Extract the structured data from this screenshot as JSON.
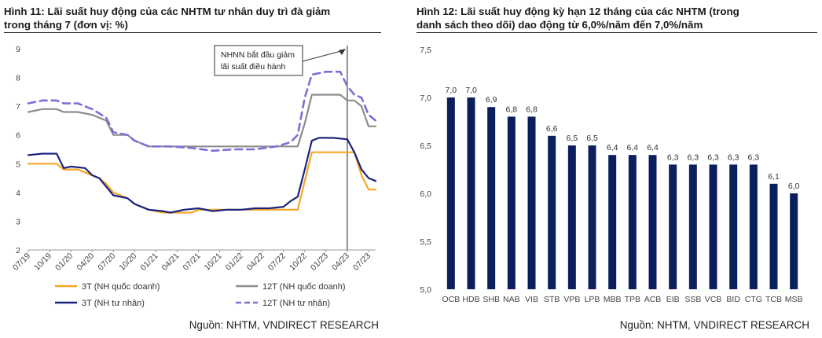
{
  "panel1": {
    "title_line1": "Hình 11: Lãi suất huy động của các NHTM tư nhân duy trì đà giảm",
    "title_line2": "trong tháng 7 (đơn vị: %)",
    "source": "Nguồn: NHTM, VNDIRECT RESEARCH"
  },
  "panel2": {
    "title_line1": "Hình 12: Lãi suất huy động kỳ hạn 12 tháng của các NHTM  (trong",
    "title_line2": "danh sách theo dõi) dao động từ 6,0%/năm đến 7,0%/năm",
    "source": "Nguồn: NHTM, VNDIRECT RESEARCH"
  },
  "colors": {
    "orange": "#F5A623",
    "gray": "#8C8C8C",
    "navy": "#1A237E",
    "purple_dash": "#7B6FD6",
    "bar": "#0B1F5C"
  },
  "chart_data": [
    {
      "type": "line",
      "x_ticks": [
        "07/19",
        "10/19",
        "01/20",
        "04/20",
        "07/20",
        "10/20",
        "01/21",
        "04/21",
        "07/21",
        "10/21",
        "01/22",
        "04/22",
        "07/22",
        "10/22",
        "01/23",
        "04/23",
        "07/23"
      ],
      "ylim": [
        2,
        9
      ],
      "y_ticks": [
        2,
        3,
        4,
        5,
        6,
        7,
        8,
        9
      ],
      "grid": false,
      "legend_position": "bottom",
      "annotation": {
        "text_line1": "NHNN bắt đầu giảm",
        "text_line2": "lãi suất điều hành",
        "x": "04/23"
      },
      "series": [
        {
          "name": "3T (NH quốc doanh)",
          "color_key": "orange",
          "style": "solid",
          "points": [
            [
              "07/19",
              5.0
            ],
            [
              "09/19",
              5.0
            ],
            [
              "11/19",
              5.0
            ],
            [
              "12/19",
              4.8
            ],
            [
              "02/20",
              4.8
            ],
            [
              "03/20",
              4.7
            ],
            [
              "05/20",
              4.5
            ],
            [
              "06/20",
              4.3
            ],
            [
              "07/20",
              4.0
            ],
            [
              "09/20",
              3.8
            ],
            [
              "10/20",
              3.6
            ],
            [
              "12/20",
              3.4
            ],
            [
              "02/21",
              3.3
            ],
            [
              "04/21",
              3.3
            ],
            [
              "06/21",
              3.3
            ],
            [
              "07/21",
              3.4
            ],
            [
              "09/21",
              3.4
            ],
            [
              "12/21",
              3.4
            ],
            [
              "03/22",
              3.4
            ],
            [
              "06/22",
              3.4
            ],
            [
              "08/22",
              3.4
            ],
            [
              "09/22",
              3.4
            ],
            [
              "10/22",
              4.4
            ],
            [
              "11/22",
              5.4
            ],
            [
              "01/23",
              5.4
            ],
            [
              "03/23",
              5.4
            ],
            [
              "04/23",
              5.4
            ],
            [
              "05/23",
              5.4
            ],
            [
              "06/23",
              4.6
            ],
            [
              "07/23",
              4.1
            ],
            [
              "08/23",
              4.1
            ]
          ]
        },
        {
          "name": "12T (NH quốc doanh)",
          "color_key": "gray",
          "style": "solid",
          "points": [
            [
              "07/19",
              6.8
            ],
            [
              "09/19",
              6.9
            ],
            [
              "11/19",
              6.9
            ],
            [
              "12/19",
              6.8
            ],
            [
              "02/20",
              6.8
            ],
            [
              "04/20",
              6.7
            ],
            [
              "06/20",
              6.5
            ],
            [
              "07/20",
              6.0
            ],
            [
              "09/20",
              6.0
            ],
            [
              "10/20",
              5.8
            ],
            [
              "12/20",
              5.6
            ],
            [
              "03/21",
              5.6
            ],
            [
              "06/21",
              5.6
            ],
            [
              "09/21",
              5.6
            ],
            [
              "12/21",
              5.6
            ],
            [
              "03/22",
              5.6
            ],
            [
              "06/22",
              5.6
            ],
            [
              "08/22",
              5.6
            ],
            [
              "09/22",
              5.6
            ],
            [
              "10/22",
              6.4
            ],
            [
              "11/22",
              7.4
            ],
            [
              "02/23",
              7.4
            ],
            [
              "03/23",
              7.4
            ],
            [
              "04/23",
              7.2
            ],
            [
              "05/23",
              7.2
            ],
            [
              "06/23",
              7.0
            ],
            [
              "07/23",
              6.3
            ],
            [
              "08/23",
              6.3
            ]
          ]
        },
        {
          "name": "3T (NH tư nhân)",
          "color_key": "navy",
          "style": "solid",
          "points": [
            [
              "07/19",
              5.3
            ],
            [
              "09/19",
              5.35
            ],
            [
              "11/19",
              5.35
            ],
            [
              "12/19",
              4.85
            ],
            [
              "01/20",
              4.9
            ],
            [
              "03/20",
              4.85
            ],
            [
              "04/20",
              4.6
            ],
            [
              "05/20",
              4.5
            ],
            [
              "06/20",
              4.2
            ],
            [
              "07/20",
              3.9
            ],
            [
              "09/20",
              3.8
            ],
            [
              "10/20",
              3.6
            ],
            [
              "12/20",
              3.4
            ],
            [
              "02/21",
              3.35
            ],
            [
              "03/21",
              3.3
            ],
            [
              "05/21",
              3.4
            ],
            [
              "07/21",
              3.45
            ],
            [
              "09/21",
              3.35
            ],
            [
              "11/21",
              3.4
            ],
            [
              "01/22",
              3.4
            ],
            [
              "03/22",
              3.45
            ],
            [
              "05/22",
              3.45
            ],
            [
              "07/22",
              3.5
            ],
            [
              "08/22",
              3.7
            ],
            [
              "09/22",
              3.85
            ],
            [
              "10/22",
              4.8
            ],
            [
              "11/22",
              5.8
            ],
            [
              "12/22",
              5.9
            ],
            [
              "02/23",
              5.9
            ],
            [
              "04/23",
              5.85
            ],
            [
              "05/23",
              5.4
            ],
            [
              "06/23",
              4.8
            ],
            [
              "07/23",
              4.5
            ],
            [
              "08/23",
              4.4
            ]
          ]
        },
        {
          "name": "12T (NH tư nhân)",
          "color_key": "purple_dash",
          "style": "dashed",
          "points": [
            [
              "07/19",
              7.1
            ],
            [
              "09/19",
              7.2
            ],
            [
              "11/19",
              7.2
            ],
            [
              "12/19",
              7.1
            ],
            [
              "02/20",
              7.1
            ],
            [
              "04/20",
              6.9
            ],
            [
              "06/20",
              6.6
            ],
            [
              "07/20",
              6.1
            ],
            [
              "09/20",
              6.0
            ],
            [
              "10/20",
              5.8
            ],
            [
              "12/20",
              5.6
            ],
            [
              "03/21",
              5.6
            ],
            [
              "06/21",
              5.55
            ],
            [
              "09/21",
              5.45
            ],
            [
              "12/21",
              5.5
            ],
            [
              "03/22",
              5.5
            ],
            [
              "06/22",
              5.6
            ],
            [
              "08/22",
              5.75
            ],
            [
              "09/22",
              6.0
            ],
            [
              "10/22",
              7.3
            ],
            [
              "11/22",
              8.1
            ],
            [
              "01/23",
              8.2
            ],
            [
              "03/23",
              8.2
            ],
            [
              "04/23",
              7.7
            ],
            [
              "05/23",
              7.4
            ],
            [
              "06/23",
              7.3
            ],
            [
              "07/23",
              6.7
            ],
            [
              "08/23",
              6.5
            ]
          ]
        }
      ]
    },
    {
      "type": "bar",
      "categories": [
        "OCB",
        "HDB",
        "SHB",
        "NAB",
        "VIB",
        "STB",
        "VPB",
        "LPB",
        "MBB",
        "TPB",
        "ACB",
        "EIB",
        "SSB",
        "VCB",
        "BID",
        "CTG",
        "TCB",
        "MSB"
      ],
      "values": [
        7.0,
        7.0,
        6.9,
        6.8,
        6.8,
        6.6,
        6.5,
        6.5,
        6.4,
        6.4,
        6.4,
        6.3,
        6.3,
        6.3,
        6.3,
        6.3,
        6.1,
        6.0
      ],
      "value_labels": [
        "7,0",
        "7,0",
        "6,9",
        "6,8",
        "6,8",
        "6,6",
        "6,5",
        "6,5",
        "6,4",
        "6,4",
        "6,4",
        "6,3",
        "6,3",
        "6,3",
        "6,3",
        "6,3",
        "6,1",
        "6,0"
      ],
      "ylim": [
        5.0,
        7.5
      ],
      "y_ticks": [
        5.0,
        5.5,
        6.0,
        6.5,
        7.0,
        7.5
      ],
      "y_tick_labels": [
        "5,0",
        "5,5",
        "6,0",
        "6,5",
        "7,0",
        "7,5"
      ],
      "grid": false
    }
  ]
}
